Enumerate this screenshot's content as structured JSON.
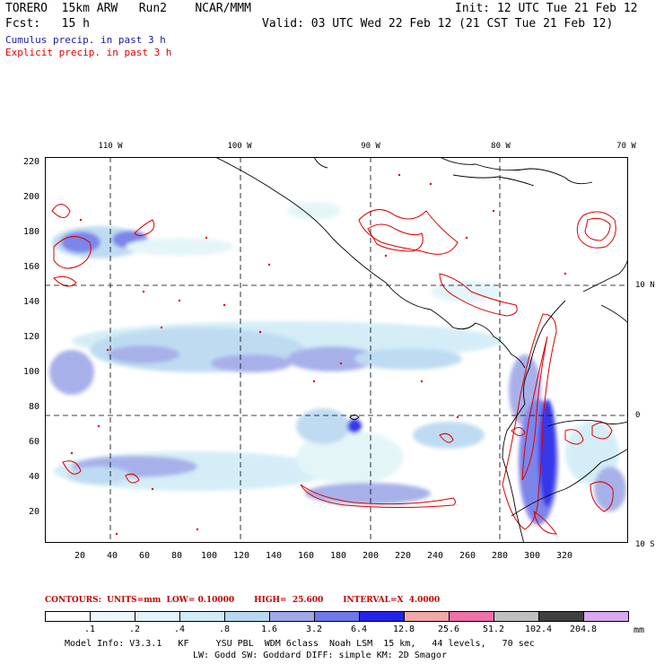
{
  "header": {
    "model": "TORERO  15km ARW   Run2    NCAR/MMM",
    "init": "Init: 12 UTC Tue 21 Feb 12",
    "fcst": "Fcst:   15 h",
    "valid": "Valid: 03 UTC Wed 22 Feb 12 (21 CST Tue 21 Feb 12)",
    "legend_cumulus": "Cumulus precip. in past 3 h",
    "legend_explicit": "Explicit precip. in past 3 h"
  },
  "colors": {
    "cumulus": "#1a1aa0",
    "explicit": "#dd0000"
  },
  "axes": {
    "top_lon": [
      "110 W",
      "100 W",
      "90 W",
      "80 W",
      "70 W"
    ],
    "right_lat": [
      "10 N",
      "0",
      "10 S"
    ],
    "left_ticks": [
      "220",
      "200",
      "180",
      "160",
      "140",
      "120",
      "100",
      "80",
      "60",
      "40",
      "20"
    ],
    "bottom_ticks": [
      "20",
      "40",
      "60",
      "80",
      "100",
      "120",
      "140",
      "160",
      "180",
      "200",
      "220",
      "240",
      "260",
      "280",
      "300",
      "320"
    ]
  },
  "contours_line": "CONTOURS:  UNITS=mm  LOW= 0.10000       HIGH=  25.600       INTERVAL=X  4.0000",
  "colorbar": {
    "labels": [
      ".1",
      ".2",
      ".4",
      ".8",
      "1.6",
      "3.2",
      "6.4",
      "12.8",
      "25.6",
      "51.2",
      "102.4",
      "204.8"
    ],
    "unit": "mm",
    "colors": [
      "#ffffff",
      "#ecf6fb",
      "#e2f4f8",
      "#d0ecf6",
      "#b8d8f0",
      "#9fa8e8",
      "#6e78e8",
      "#2424e8",
      "#f0a8a8",
      "#f070a8",
      "#c0c0c0",
      "#404040",
      "#d8a8f0"
    ]
  },
  "model_info": {
    "line1": "Model Info: V3.3.1   KF     YSU PBL  WDM 6class  Noah LSM  15 km,   44 levels,   70 sec",
    "line2": "LW: Godd SW: Goddard DIFF: simple KM: 2D Smagor"
  }
}
